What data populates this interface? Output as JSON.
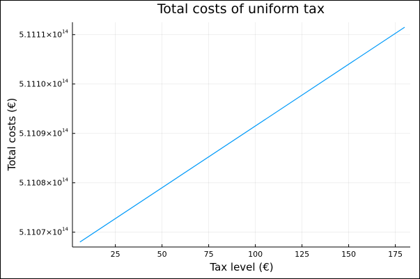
{
  "chart_data": {
    "type": "line",
    "title": "Total costs of uniform tax",
    "xlabel": "Tax level (€)",
    "ylabel": "Total costs (€)",
    "xlim": [
      2,
      183
    ],
    "ylim": [
      511067000000000.0,
      511112500000000.0
    ],
    "grid": true,
    "legend": "none",
    "x_ticks": [
      {
        "value": 25,
        "label": "25"
      },
      {
        "value": 50,
        "label": "50"
      },
      {
        "value": 75,
        "label": "75"
      },
      {
        "value": 100,
        "label": "100"
      },
      {
        "value": 125,
        "label": "125"
      },
      {
        "value": 150,
        "label": "150"
      },
      {
        "value": 175,
        "label": "175"
      }
    ],
    "y_ticks": [
      {
        "value": 511070000000000.0,
        "mantissa": "5.1107×10",
        "exponent": "14"
      },
      {
        "value": 511080000000000.0,
        "mantissa": "5.1108×10",
        "exponent": "14"
      },
      {
        "value": 511090000000000.0,
        "mantissa": "5.1109×10",
        "exponent": "14"
      },
      {
        "value": 511100000000000.0,
        "mantissa": "5.1110×10",
        "exponent": "14"
      },
      {
        "value": 511110000000000.0,
        "mantissa": "5.1111×10",
        "exponent": "14"
      }
    ],
    "series": [
      {
        "color": "#009AF9",
        "x": [
          6,
          180
        ],
        "y": [
          511068000000000.0,
          511111500000000.0
        ]
      }
    ]
  }
}
